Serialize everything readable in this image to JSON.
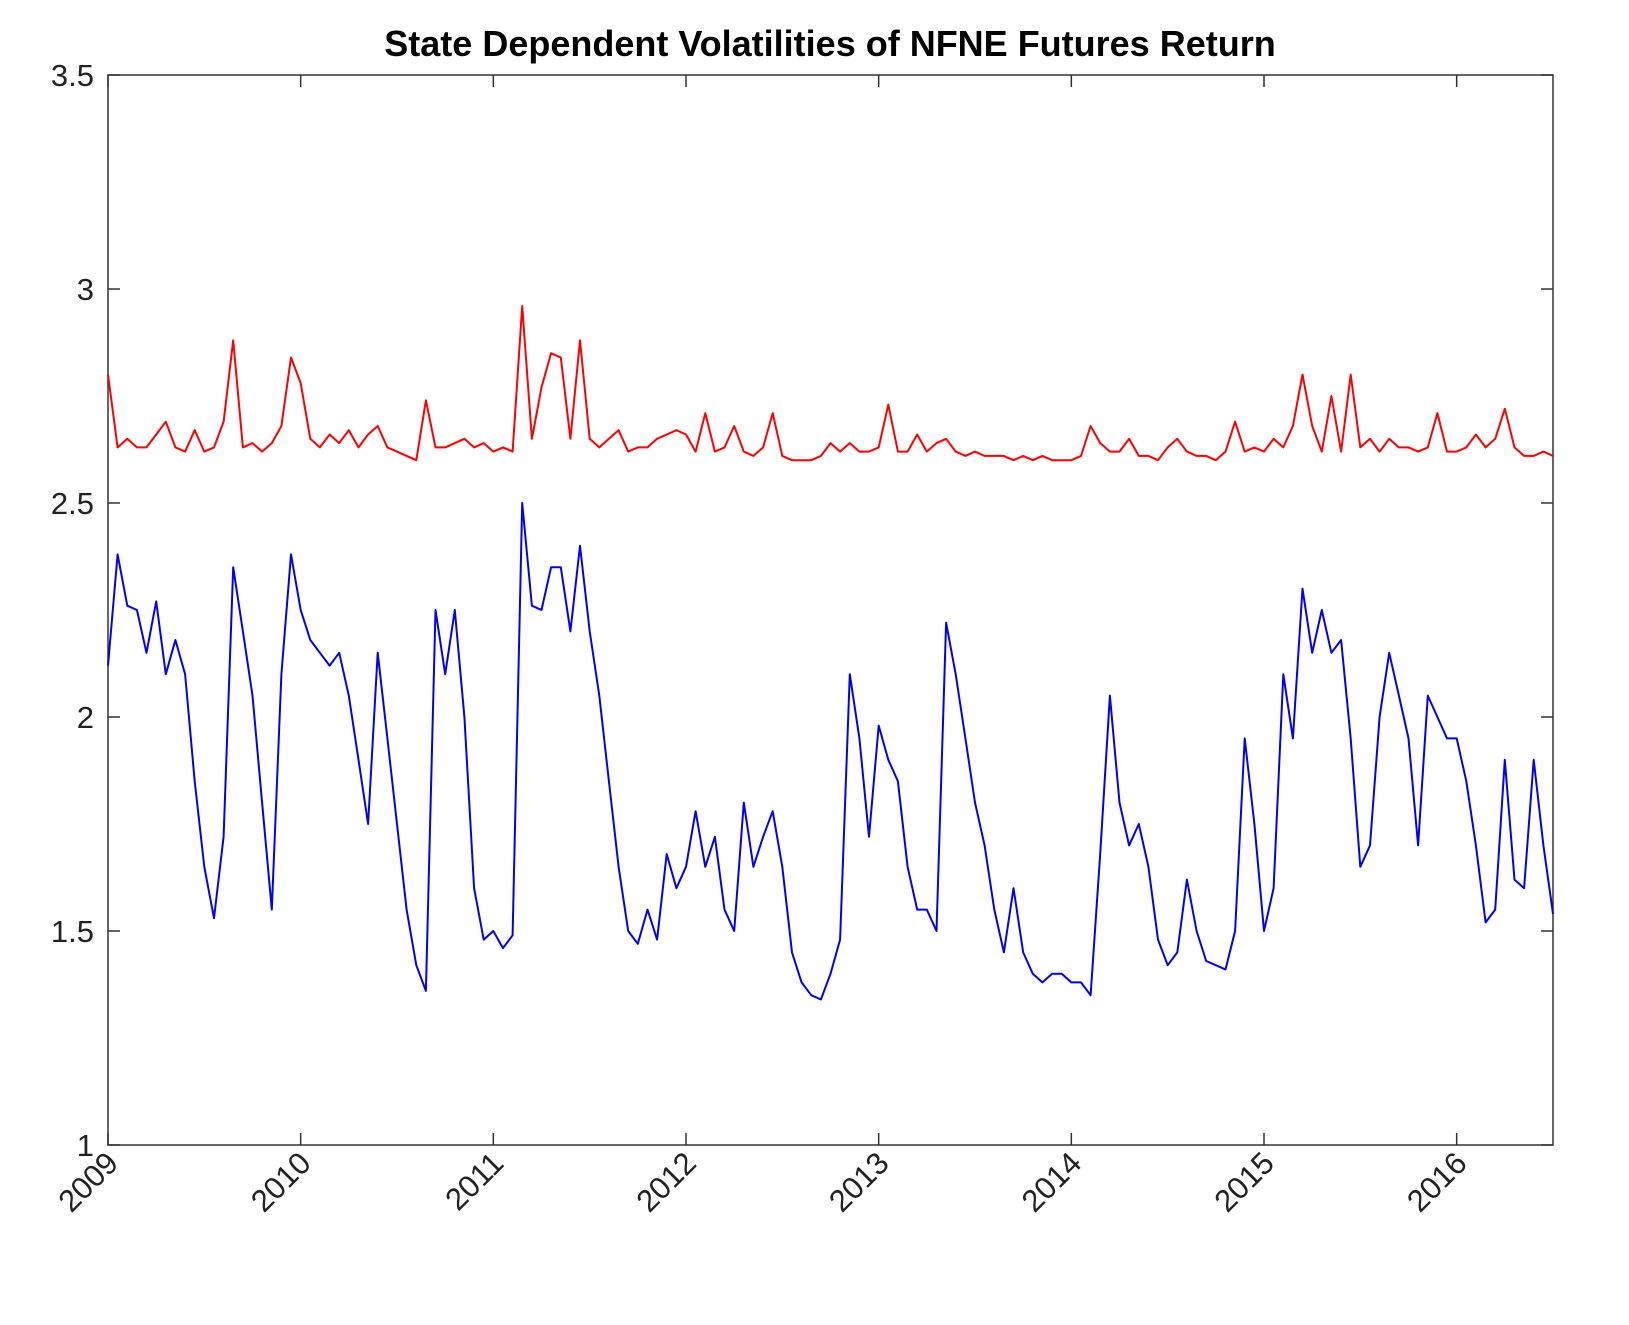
{
  "chart_data": {
    "type": "line",
    "title": "State Dependent Volatilities of NFNE Futures Return",
    "x": [
      2009,
      2009.05,
      2009.1,
      2009.15,
      2009.2,
      2009.25,
      2009.3,
      2009.35,
      2009.4,
      2009.45,
      2009.5,
      2009.55,
      2009.6,
      2009.65,
      2009.7,
      2009.75,
      2009.8,
      2009.85,
      2009.9,
      2009.95,
      2010,
      2010.05,
      2010.1,
      2010.15,
      2010.2,
      2010.25,
      2010.3,
      2010.35,
      2010.4,
      2010.45,
      2010.5,
      2010.55,
      2010.6,
      2010.65,
      2010.7,
      2010.75,
      2010.8,
      2010.85,
      2010.9,
      2010.95,
      2011,
      2011.05,
      2011.1,
      2011.15,
      2011.2,
      2011.25,
      2011.3,
      2011.35,
      2011.4,
      2011.45,
      2011.5,
      2011.55,
      2011.6,
      2011.65,
      2011.7,
      2011.75,
      2011.8,
      2011.85,
      2011.9,
      2011.95,
      2012,
      2012.05,
      2012.1,
      2012.15,
      2012.2,
      2012.25,
      2012.3,
      2012.35,
      2012.4,
      2012.45,
      2012.5,
      2012.55,
      2012.6,
      2012.65,
      2012.7,
      2012.75,
      2012.8,
      2012.85,
      2012.9,
      2012.95,
      2013,
      2013.05,
      2013.1,
      2013.15,
      2013.2,
      2013.25,
      2013.3,
      2013.35,
      2013.4,
      2013.45,
      2013.5,
      2013.55,
      2013.6,
      2013.65,
      2013.7,
      2013.75,
      2013.8,
      2013.85,
      2013.9,
      2013.95,
      2014,
      2014.05,
      2014.1,
      2014.15,
      2014.2,
      2014.25,
      2014.3,
      2014.35,
      2014.4,
      2014.45,
      2014.5,
      2014.55,
      2014.6,
      2014.65,
      2014.7,
      2014.75,
      2014.8,
      2014.85,
      2014.9,
      2014.95,
      2015,
      2015.05,
      2015.1,
      2015.15,
      2015.2,
      2015.25,
      2015.3,
      2015.35,
      2015.4,
      2015.45,
      2015.5,
      2015.55,
      2015.6,
      2015.65,
      2015.7,
      2015.75,
      2015.8,
      2015.85,
      2015.9,
      2015.95,
      2016,
      2016.05,
      2016.1,
      2016.15,
      2016.2,
      2016.25,
      2016.3,
      2016.35,
      2016.4,
      2016.45,
      2016.5
    ],
    "series": [
      {
        "color": "#ff0000",
        "values": [
          2.8,
          2.63,
          2.65,
          2.63,
          2.63,
          2.66,
          2.69,
          2.63,
          2.62,
          2.67,
          2.62,
          2.63,
          2.69,
          2.88,
          2.63,
          2.64,
          2.62,
          2.64,
          2.68,
          2.84,
          2.78,
          2.65,
          2.63,
          2.66,
          2.64,
          2.67,
          2.63,
          2.66,
          2.68,
          2.63,
          2.62,
          2.61,
          2.6,
          2.74,
          2.63,
          2.63,
          2.64,
          2.65,
          2.63,
          2.64,
          2.62,
          2.63,
          2.62,
          2.96,
          2.65,
          2.77,
          2.85,
          2.84,
          2.65,
          2.88,
          2.65,
          2.63,
          2.65,
          2.67,
          2.62,
          2.63,
          2.63,
          2.65,
          2.66,
          2.67,
          2.66,
          2.62,
          2.71,
          2.62,
          2.63,
          2.68,
          2.62,
          2.61,
          2.63,
          2.71,
          2.61,
          2.6,
          2.6,
          2.6,
          2.61,
          2.64,
          2.62,
          2.64,
          2.62,
          2.62,
          2.63,
          2.73,
          2.62,
          2.62,
          2.66,
          2.62,
          2.64,
          2.65,
          2.62,
          2.61,
          2.62,
          2.61,
          2.61,
          2.61,
          2.6,
          2.61,
          2.6,
          2.61,
          2.6,
          2.6,
          2.6,
          2.61,
          2.68,
          2.64,
          2.62,
          2.62,
          2.65,
          2.61,
          2.61,
          2.6,
          2.63,
          2.65,
          2.62,
          2.61,
          2.61,
          2.6,
          2.62,
          2.69,
          2.62,
          2.63,
          2.62,
          2.65,
          2.63,
          2.68,
          2.8,
          2.68,
          2.62,
          2.75,
          2.62,
          2.8,
          2.63,
          2.65,
          2.62,
          2.65,
          2.63,
          2.63,
          2.62,
          2.63,
          2.71,
          2.62,
          2.62,
          2.63,
          2.66,
          2.63,
          2.65,
          2.72,
          2.63,
          2.61,
          2.61,
          2.62,
          2.61
        ]
      },
      {
        "color": "#0000ff",
        "values": [
          2.12,
          2.38,
          2.26,
          2.25,
          2.15,
          2.27,
          2.1,
          2.18,
          2.1,
          1.85,
          1.65,
          1.53,
          1.72,
          2.35,
          2.2,
          2.05,
          1.8,
          1.55,
          2.1,
          2.38,
          2.25,
          2.18,
          2.15,
          2.12,
          2.15,
          2.05,
          1.9,
          1.75,
          2.15,
          1.95,
          1.75,
          1.55,
          1.42,
          1.36,
          2.25,
          2.1,
          2.25,
          2.0,
          1.6,
          1.48,
          1.5,
          1.46,
          1.49,
          2.5,
          2.26,
          2.25,
          2.35,
          2.35,
          2.2,
          2.4,
          2.2,
          2.05,
          1.85,
          1.65,
          1.5,
          1.47,
          1.55,
          1.48,
          1.68,
          1.6,
          1.65,
          1.78,
          1.65,
          1.72,
          1.55,
          1.5,
          1.8,
          1.65,
          1.72,
          1.78,
          1.65,
          1.45,
          1.38,
          1.35,
          1.34,
          1.4,
          1.48,
          2.1,
          1.95,
          1.72,
          1.98,
          1.9,
          1.85,
          1.65,
          1.55,
          1.55,
          1.5,
          2.22,
          2.1,
          1.95,
          1.8,
          1.7,
          1.55,
          1.45,
          1.6,
          1.45,
          1.4,
          1.38,
          1.4,
          1.4,
          1.38,
          1.38,
          1.35,
          1.68,
          2.05,
          1.8,
          1.7,
          1.75,
          1.65,
          1.48,
          1.42,
          1.45,
          1.62,
          1.5,
          1.43,
          1.42,
          1.41,
          1.5,
          1.95,
          1.75,
          1.5,
          1.6,
          2.1,
          1.95,
          2.3,
          2.15,
          2.25,
          2.15,
          2.18,
          1.95,
          1.65,
          1.7,
          2.0,
          2.15,
          2.05,
          1.95,
          1.7,
          2.05,
          2.0,
          1.95,
          1.95,
          1.85,
          1.7,
          1.52,
          1.55,
          1.9,
          1.62,
          1.6,
          1.9,
          1.7,
          1.54
        ]
      }
    ],
    "xlim": [
      2009,
      2016.5
    ],
    "xticks": [
      2009,
      2010,
      2011,
      2012,
      2013,
      2014,
      2015,
      2016
    ],
    "ylim": [
      1,
      3.5
    ],
    "yticks": [
      1,
      1.5,
      2,
      2.5,
      3,
      3.5
    ]
  }
}
